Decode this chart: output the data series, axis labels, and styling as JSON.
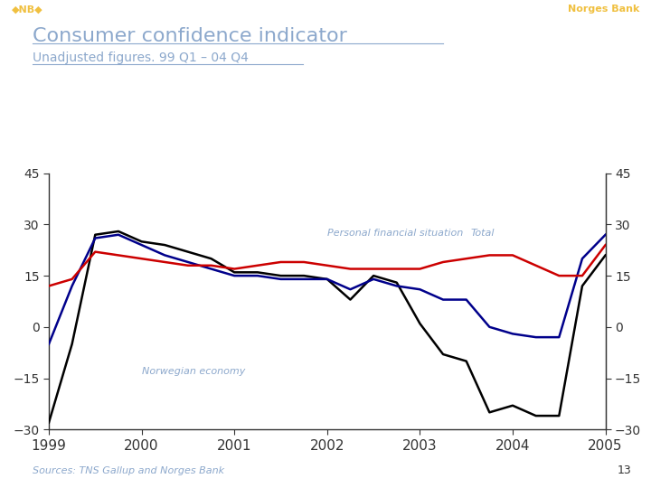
{
  "title": "Consumer confidence indicator",
  "subtitle": "Unadjusted figures. 99 Q1 – 04 Q4",
  "ylim": [
    -30,
    45
  ],
  "yticks": [
    -30,
    -15,
    0,
    15,
    30,
    45
  ],
  "background_color": "#ffffff",
  "header_color": "#8b0000",
  "title_color": "#8ca8cc",
  "source_text": "Sources: TNS Gallup and Norges Bank",
  "page_number": "13",
  "annotation_norwegian": "Norwegian economy",
  "annotation_personal": "Personal financial situation",
  "annotation_total": "Total",
  "x_labels": [
    "1999",
    "2000",
    "2001",
    "2002",
    "2003",
    "2004",
    "2005"
  ],
  "black_vals": [
    -28,
    -5,
    27,
    28,
    25,
    24,
    22,
    20,
    16,
    16,
    15,
    15,
    14,
    8,
    15,
    13,
    1,
    -8,
    -10,
    -25,
    -23,
    -26,
    -26,
    12,
    21
  ],
  "blue_vals": [
    -5,
    12,
    26,
    27,
    24,
    21,
    19,
    17,
    15,
    15,
    14,
    14,
    14,
    11,
    14,
    12,
    11,
    8,
    8,
    0,
    -2,
    -3,
    -3,
    20,
    27
  ],
  "red_vals": [
    12,
    14,
    22,
    21,
    20,
    19,
    18,
    18,
    17,
    18,
    19,
    19,
    18,
    17,
    17,
    17,
    17,
    19,
    20,
    21,
    21,
    18,
    15,
    15,
    24
  ],
  "line_black_color": "#000000",
  "line_blue_color": "#00008b",
  "line_red_color": "#cc0000",
  "linewidth": 1.8,
  "annotation_color": "#8ca8cc",
  "tick_label_color": "#333333",
  "spine_color": "#333333"
}
